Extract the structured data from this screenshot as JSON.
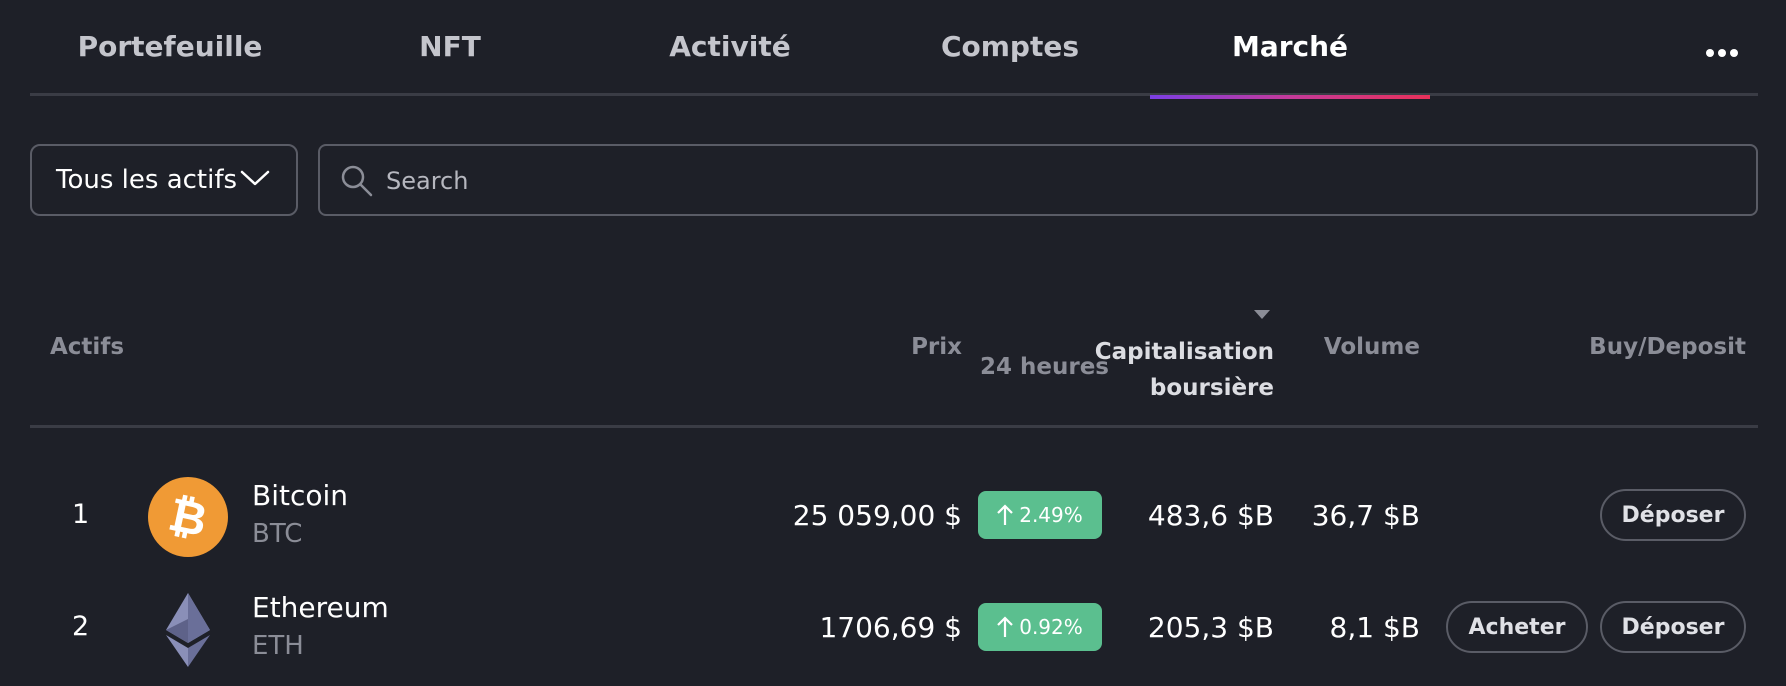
{
  "tabs": [
    {
      "label": "Portefeuille",
      "active": false
    },
    {
      "label": "NFT",
      "active": false
    },
    {
      "label": "Activité",
      "active": false
    },
    {
      "label": "Comptes",
      "active": false
    },
    {
      "label": "Marché",
      "active": true
    }
  ],
  "more_icon": "ellipsis-icon",
  "filters": {
    "asset_select": "Tous les actifs",
    "search_placeholder": "Search",
    "search_value": ""
  },
  "table": {
    "headers": {
      "assets": "Actifs",
      "price": "Prix",
      "change": "24 heures",
      "market_cap_line1": "Capitalisation",
      "market_cap_line2": "boursière",
      "volume": "Volume",
      "action": "Buy/Deposit"
    },
    "sorted_by": "market_cap",
    "rows": [
      {
        "rank": "1",
        "name": "Bitcoin",
        "symbol": "BTC",
        "icon": "bitcoin-icon",
        "price": "25 059,00 $",
        "change": "2.49%",
        "market_cap": "483,6 $B",
        "volume": "36,7 $B",
        "buy_label": "",
        "deposit_label": "Déposer"
      },
      {
        "rank": "2",
        "name": "Ethereum",
        "symbol": "ETH",
        "icon": "ethereum-icon",
        "price": "1706,69 $",
        "change": "0.92%",
        "market_cap": "205,3 $B",
        "volume": "8,1 $B",
        "buy_label": "Acheter",
        "deposit_label": "Déposer"
      }
    ]
  },
  "colors": {
    "background": "#1e2028",
    "positive": "#5bbf8f",
    "bitcoin": "#f09a35",
    "tab_gradient_start": "#7b3fe4",
    "tab_gradient_end": "#e8315a"
  }
}
